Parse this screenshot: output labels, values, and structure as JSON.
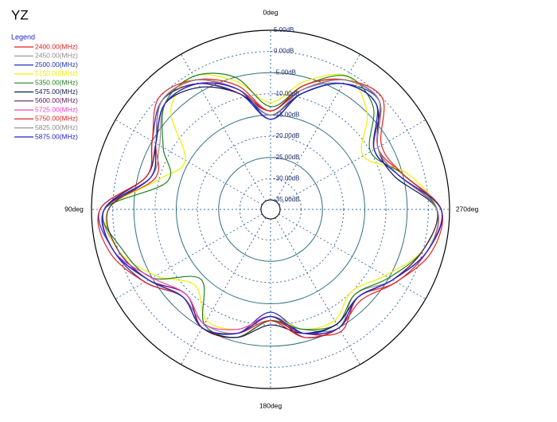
{
  "chart_data": {
    "type": "polar",
    "title": "YZ",
    "legend_title": "Legend",
    "legend": "upper-left",
    "direction": "counterclockwise",
    "zero_location": "top",
    "rlim": [
      -35,
      5
    ],
    "rticks": [
      {
        "value": 5,
        "label": "5.00dB"
      },
      {
        "value": 0,
        "label": "0.00dB"
      },
      {
        "value": -5,
        "label": "-5.00dB"
      },
      {
        "value": -10,
        "label": "-10.00dB"
      },
      {
        "value": -15,
        "label": "-15.00dB"
      },
      {
        "value": -20,
        "label": "-20.00dB"
      },
      {
        "value": -25,
        "label": "-25.00dB"
      },
      {
        "value": -30,
        "label": "-30.00dB"
      },
      {
        "value": -35,
        "label": "-35.00dB"
      }
    ],
    "angle_ticks": [
      {
        "value": 0,
        "label": "0deg"
      },
      {
        "value": 90,
        "label": "90deg"
      },
      {
        "value": 180,
        "label": "180deg"
      },
      {
        "value": 270,
        "label": "270deg"
      }
    ],
    "grid_angles": [
      0,
      30,
      60,
      90,
      120,
      150,
      180,
      210,
      240,
      270,
      300,
      330
    ],
    "x": [
      0,
      15,
      30,
      45,
      60,
      75,
      90,
      105,
      120,
      135,
      150,
      165,
      180,
      195,
      210,
      225,
      240,
      255,
      270,
      285,
      300,
      315,
      330,
      345
    ],
    "series": [
      {
        "name": "2400.00(MHz)",
        "color": "#e02020",
        "values": [
          -14,
          -7,
          -2,
          -1,
          -6,
          -9,
          2,
          1,
          -4,
          -9,
          -5,
          -6,
          -11,
          -7,
          -4,
          -8,
          -3,
          1,
          3,
          -5,
          -8,
          -1,
          -2,
          -7
        ]
      },
      {
        "name": "2450.00(MHz)",
        "color": "#909090",
        "values": [
          -15,
          -8,
          -3,
          -2,
          -7,
          -8,
          2,
          0,
          -4,
          -8,
          -6,
          -7,
          -12,
          -8,
          -5,
          -9,
          -4,
          0,
          2,
          -6,
          -9,
          -2,
          -3,
          -8
        ]
      },
      {
        "name": "2500.00(MHz)",
        "color": "#2030c0",
        "values": [
          -16,
          -9,
          -3,
          -1,
          -5,
          -7,
          3,
          1,
          -3,
          -8,
          -5,
          -7,
          -13,
          -7,
          -6,
          -8,
          -4,
          1,
          3,
          -6,
          -8,
          -1,
          -3,
          -9
        ]
      },
      {
        "name": "5150.00(MHz)",
        "color": "#f0f000",
        "values": [
          -12,
          -6,
          -1,
          -4,
          -14,
          -10,
          1,
          0,
          -6,
          -12,
          -7,
          -8,
          -12,
          -8,
          -7,
          -10,
          -6,
          0,
          2,
          -4,
          -12,
          -5,
          -1,
          -6
        ]
      },
      {
        "name": "5350.00(MHz)",
        "color": "#208020",
        "values": [
          -13,
          -5,
          -1,
          -2,
          -8,
          -12,
          2,
          -1,
          -5,
          -14,
          -6,
          -6,
          -11,
          -8,
          -6,
          -9,
          -5,
          0,
          2,
          -5,
          -10,
          -3,
          -1,
          -7
        ]
      },
      {
        "name": "5475.00(MHz)",
        "color": "#101850",
        "values": [
          -15,
          -9,
          -4,
          -2,
          -6,
          -7,
          2,
          1,
          -4,
          -8,
          -5,
          -6,
          -10,
          -7,
          -6,
          -8,
          -4,
          1,
          2,
          -7,
          -8,
          -2,
          -3,
          -9
        ]
      },
      {
        "name": "5600.00(MHz)",
        "color": "#602060",
        "values": [
          -14,
          -9,
          -3,
          -1,
          -6,
          -8,
          1,
          0,
          -4,
          -9,
          -5,
          -7,
          -12,
          -6,
          -5,
          -8,
          -4,
          0,
          2,
          -6,
          -9,
          -1,
          -2,
          -8
        ]
      },
      {
        "name": "5725.00(MHz)",
        "color": "#f040c0",
        "values": [
          -15,
          -8,
          -2,
          -1,
          -6,
          -8,
          2,
          1,
          -5,
          -9,
          -6,
          -8,
          -12,
          -7,
          -5,
          -8,
          -4,
          1,
          3,
          -6,
          -8,
          -1,
          -2,
          -8
        ]
      },
      {
        "name": "5750.00(MHz)",
        "color": "#e82020",
        "values": [
          -14,
          -8,
          -2,
          0,
          -5,
          -7,
          3,
          2,
          -3,
          -8,
          -5,
          -7,
          -11,
          -6,
          -5,
          -7,
          -3,
          2,
          3,
          -5,
          -7,
          0,
          -2,
          -7
        ]
      },
      {
        "name": "5825.00(MHz)",
        "color": "#8a8a8a",
        "values": [
          -15,
          -8,
          -2,
          -1,
          -6,
          -8,
          2,
          1,
          -4,
          -8,
          -5,
          -7,
          -12,
          -7,
          -5,
          -8,
          -4,
          1,
          2,
          -6,
          -8,
          -1,
          -2,
          -8
        ]
      },
      {
        "name": "5875.00(MHz)",
        "color": "#2020d0",
        "values": [
          -16,
          -8,
          -3,
          -2,
          -6,
          -8,
          2,
          1,
          -4,
          -8,
          -5,
          -7,
          -12,
          -7,
          -5,
          -8,
          -4,
          1,
          3,
          -6,
          -9,
          -2,
          -3,
          -9
        ]
      }
    ]
  }
}
